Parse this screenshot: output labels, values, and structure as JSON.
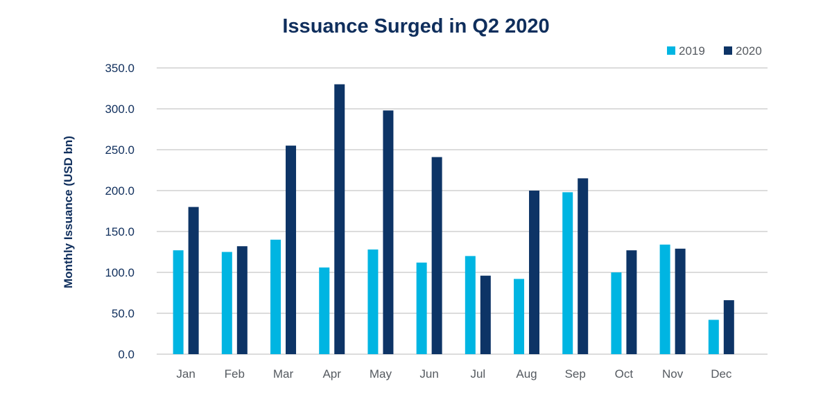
{
  "chart_data": {
    "type": "bar",
    "title": "Issuance Surged in Q2 2020",
    "ylabel": "Monthly Issuance (USD bn)",
    "xlabel": "",
    "ylim": [
      0,
      350
    ],
    "yticks": [
      "0.0",
      "50.0",
      "100.0",
      "150.0",
      "200.0",
      "250.0",
      "300.0",
      "350.0"
    ],
    "grid": true,
    "legend_position": "top-right",
    "categories": [
      "Jan",
      "Feb",
      "Mar",
      "Apr",
      "May",
      "Jun",
      "Jul",
      "Aug",
      "Sep",
      "Oct",
      "Nov",
      "Dec"
    ],
    "series": [
      {
        "name": "2019",
        "color": "#00b5e2",
        "values": [
          127,
          125,
          140,
          106,
          128,
          112,
          120,
          92,
          198,
          100,
          134,
          42
        ]
      },
      {
        "name": "2020",
        "color": "#0d3466",
        "values": [
          180,
          132,
          255,
          330,
          298,
          241,
          96,
          200,
          215,
          127,
          129,
          66
        ]
      }
    ]
  }
}
